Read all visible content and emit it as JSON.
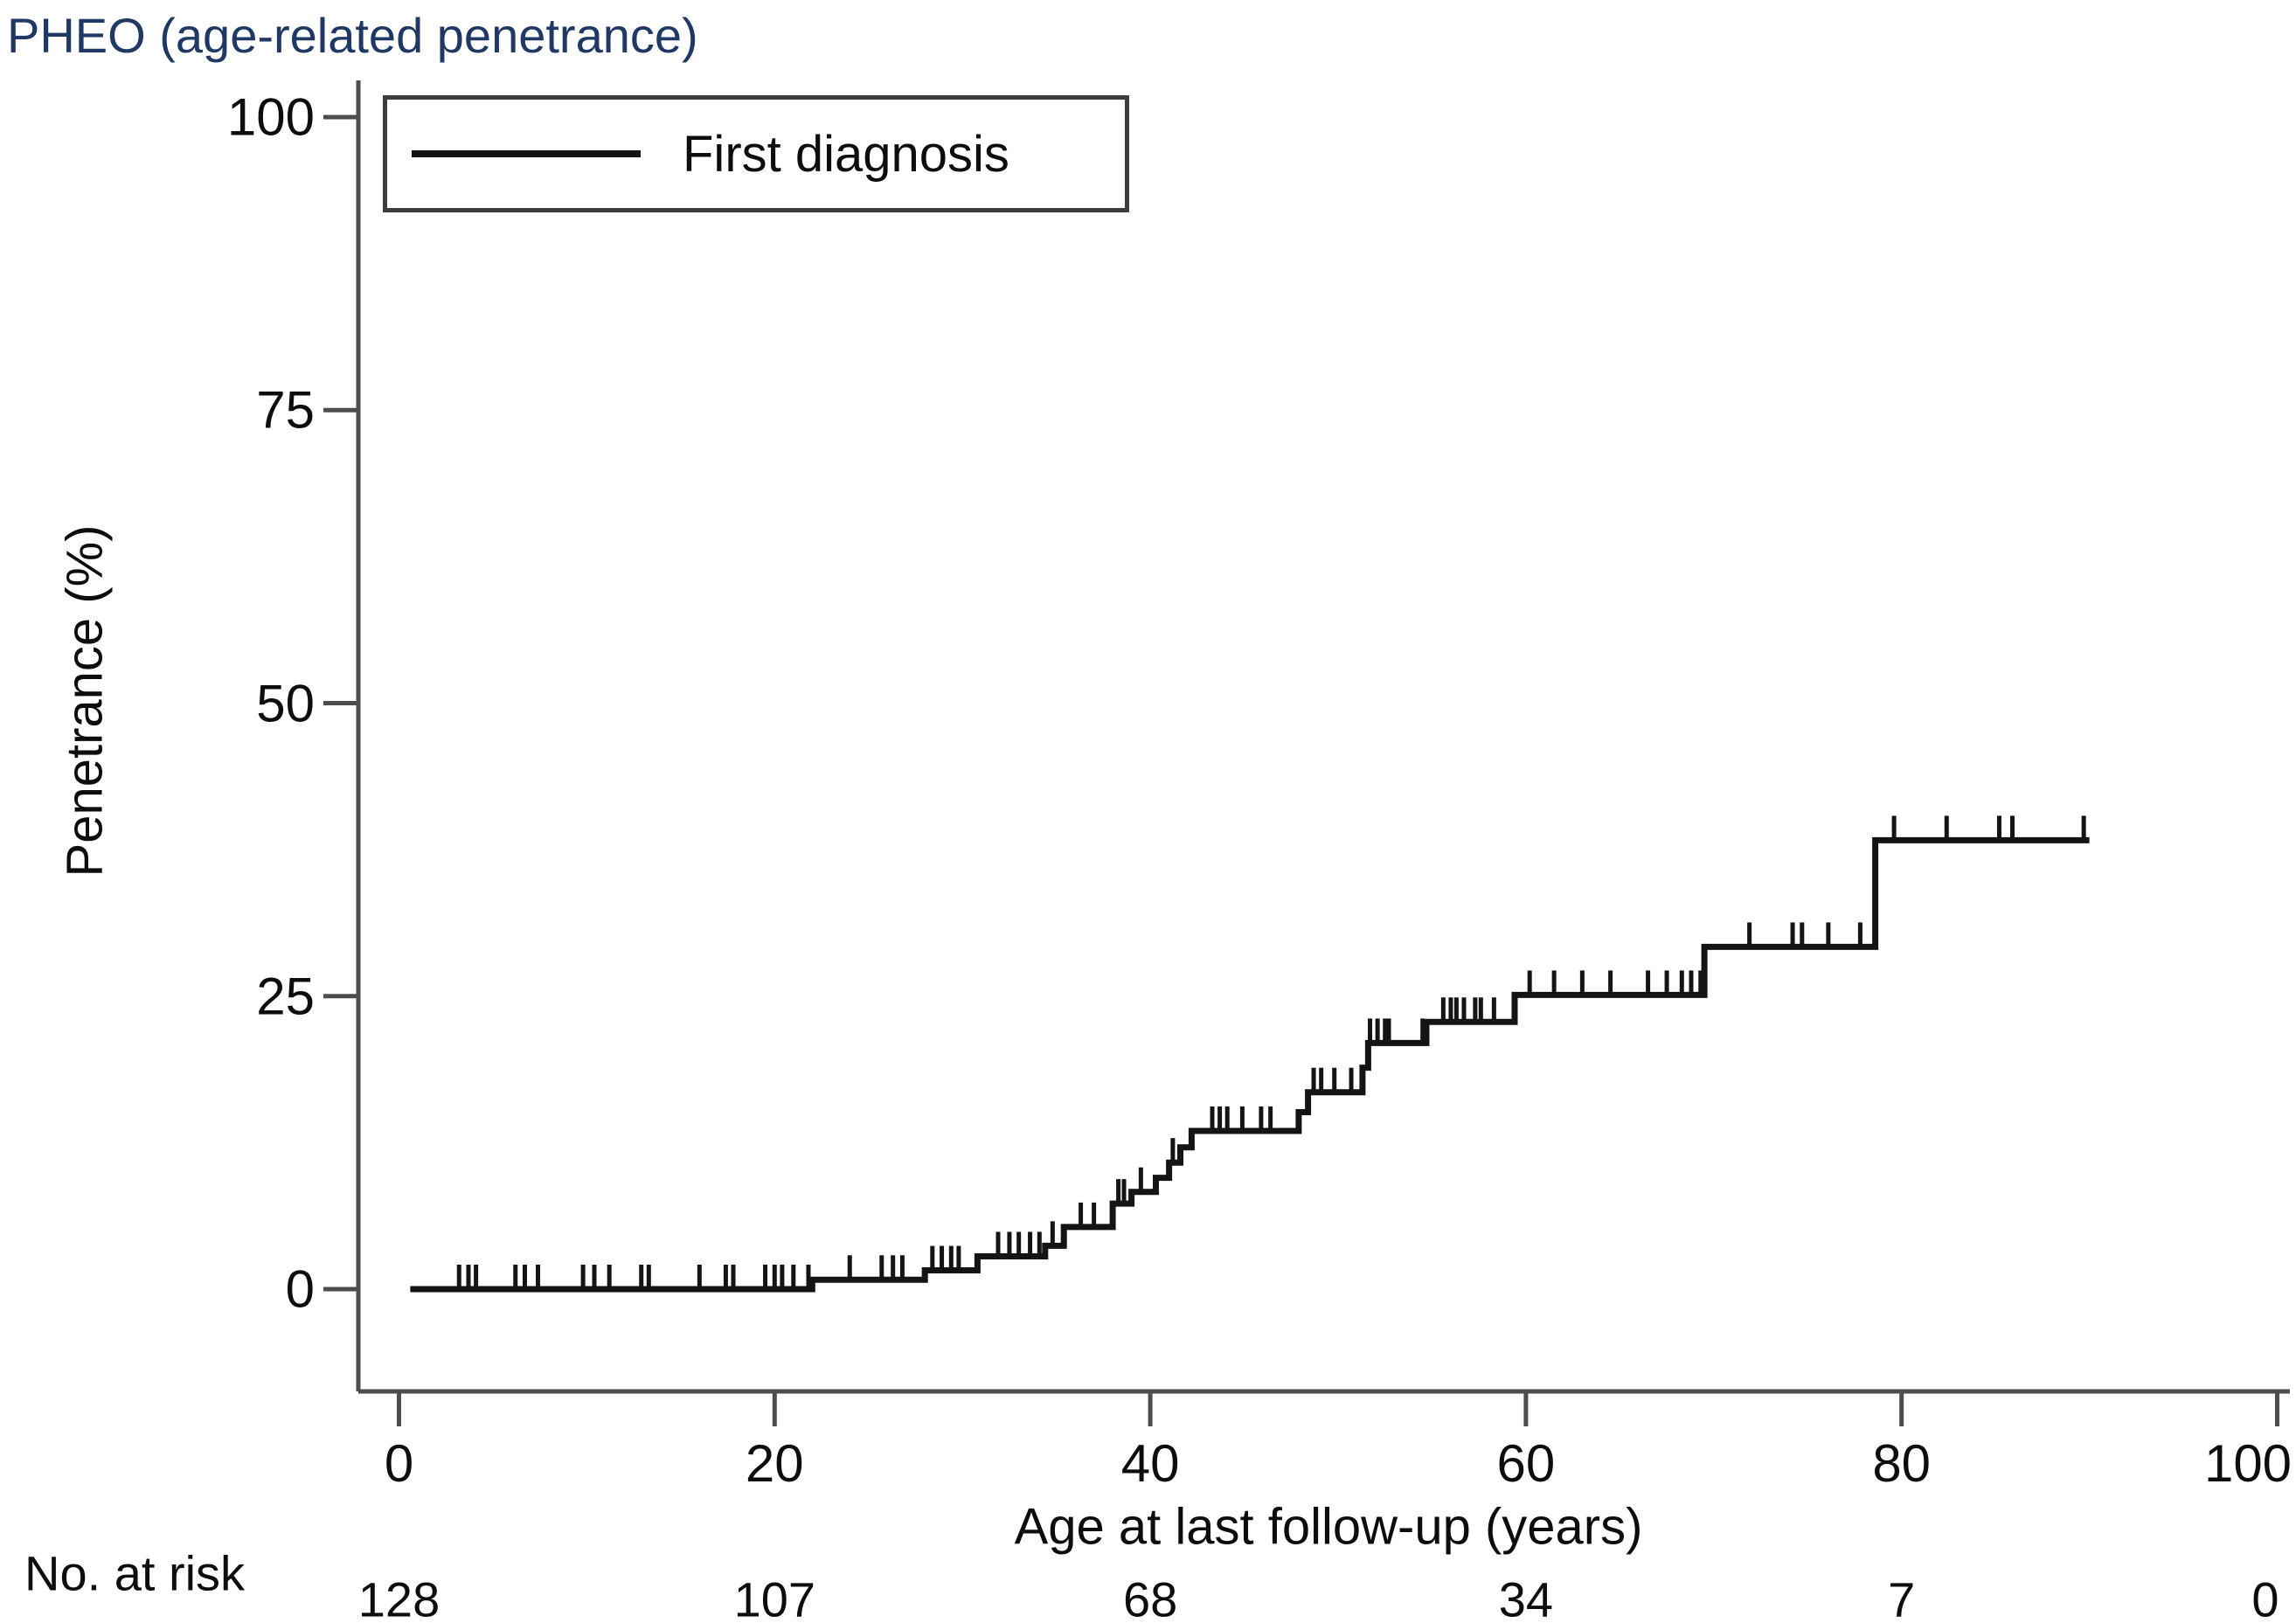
{
  "title": "PHEO (age-related penetrance)",
  "legend": {
    "label": "First diagnosis"
  },
  "axes": {
    "y_label": "Penetrance (%)",
    "x_label": "Age at last follow-up (years)"
  },
  "risk": {
    "label": "No. at risk"
  },
  "colors": {
    "title_text": "#1f3864",
    "curve": "#141414",
    "axis": "#4d4d4d",
    "text": "#0d0d0d"
  },
  "chart_data": {
    "type": "line",
    "subtype": "kaplan-meier-step",
    "title": "PHEO (age-related penetrance)",
    "xlabel": "Age at last follow-up (years)",
    "ylabel": "Penetrance (%)",
    "xlim": [
      0,
      100
    ],
    "ylim": [
      0,
      100
    ],
    "x_ticks": [
      0,
      20,
      40,
      60,
      80,
      100
    ],
    "y_ticks": [
      0,
      25,
      50,
      75,
      100
    ],
    "grid": false,
    "legend_position": "top-left",
    "series": [
      {
        "name": "First diagnosis",
        "start_age": 0.6,
        "end_age": 90,
        "steps": [
          [
            0.6,
            0
          ],
          [
            22,
            0.8
          ],
          [
            28,
            1.6
          ],
          [
            30.8,
            2.8
          ],
          [
            34.4,
            3.7
          ],
          [
            35.4,
            5.3
          ],
          [
            38,
            7.3
          ],
          [
            39,
            8.3
          ],
          [
            40.3,
            9.5
          ],
          [
            41,
            10.8
          ],
          [
            41.6,
            12.1
          ],
          [
            42.2,
            13.5
          ],
          [
            47.9,
            15.1
          ],
          [
            48.4,
            16.8
          ],
          [
            51.3,
            18.9
          ],
          [
            51.6,
            21.0
          ],
          [
            54.7,
            22.8
          ],
          [
            59.4,
            25.1
          ],
          [
            69.5,
            29.2
          ],
          [
            78.6,
            38.3
          ]
        ],
        "censor_ages": [
          3.2,
          3.7,
          4.1,
          6.2,
          6.7,
          7.4,
          9.8,
          10.4,
          11.2,
          12.9,
          13.3,
          16.0,
          17.4,
          17.8,
          19.5,
          20.0,
          20.4,
          21.0,
          21.8,
          24.0,
          25.7,
          26.3,
          26.8,
          28.4,
          28.9,
          29.4,
          29.8,
          31.9,
          32.5,
          33.0,
          33.6,
          34.1,
          34.8,
          36.3,
          37.0,
          38.3,
          38.6,
          39.5,
          41.2,
          43.3,
          43.7,
          44.1,
          44.9,
          45.9,
          46.4,
          48.7,
          49.1,
          49.8,
          50.7,
          51.7,
          52.1,
          52.5,
          52.7,
          54.5,
          55.6,
          56.0,
          56.3,
          56.7,
          57.3,
          57.6,
          58.3,
          60.2,
          61.5,
          63.0,
          64.5,
          66.5,
          67.5,
          68.3,
          68.8,
          69.3,
          71.9,
          74.2,
          74.7,
          76.1,
          77.8,
          79.6,
          82.4,
          85.2,
          85.9,
          89.7
        ]
      }
    ],
    "risk_table": {
      "label": "No. at risk",
      "ages": [
        0,
        20,
        40,
        60,
        80,
        100
      ],
      "values": [
        128,
        107,
        68,
        34,
        7,
        0
      ]
    }
  }
}
